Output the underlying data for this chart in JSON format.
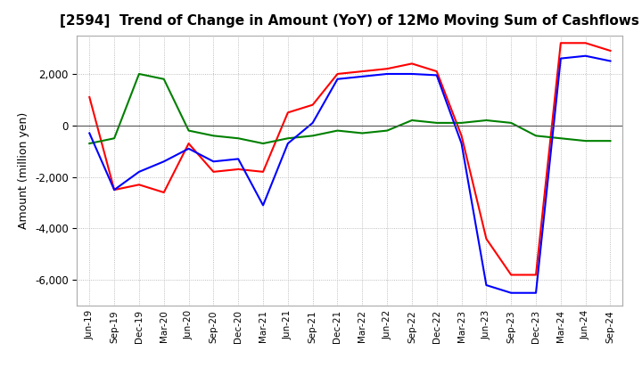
{
  "title": "[2594]  Trend of Change in Amount (YoY) of 12Mo Moving Sum of Cashflows",
  "ylabel": "Amount (million yen)",
  "xlabels": [
    "Jun-19",
    "Sep-19",
    "Dec-19",
    "Mar-20",
    "Jun-20",
    "Sep-20",
    "Dec-20",
    "Mar-21",
    "Jun-21",
    "Sep-21",
    "Dec-21",
    "Mar-22",
    "Jun-22",
    "Sep-22",
    "Dec-22",
    "Mar-23",
    "Jun-23",
    "Sep-23",
    "Dec-23",
    "Mar-24",
    "Jun-24",
    "Sep-24"
  ],
  "operating": [
    1100,
    -2500,
    -2300,
    -2600,
    -700,
    -1800,
    -1700,
    -1800,
    500,
    800,
    2000,
    2100,
    2200,
    2400,
    2100,
    -400,
    -4400,
    -5800,
    -5800,
    3200,
    3200,
    2900
  ],
  "investing": [
    -700,
    -500,
    2000,
    1800,
    -200,
    -400,
    -500,
    -700,
    -500,
    -400,
    -200,
    -300,
    -200,
    200,
    100,
    100,
    200,
    100,
    -400,
    -500,
    -600,
    -600
  ],
  "free": [
    -300,
    -2500,
    -1800,
    -1400,
    -900,
    -1400,
    -1300,
    -3100,
    -700,
    100,
    1800,
    1900,
    2000,
    2000,
    1950,
    -700,
    -6200,
    -6500,
    -6500,
    2600,
    2700,
    2500
  ],
  "ylim": [
    -7000,
    3500
  ],
  "yticks": [
    -6000,
    -4000,
    -2000,
    0,
    2000
  ],
  "operating_color": "#ff0000",
  "investing_color": "#008000",
  "free_color": "#0000ff",
  "grid_color": "#aaaaaa",
  "background_color": "#ffffff"
}
